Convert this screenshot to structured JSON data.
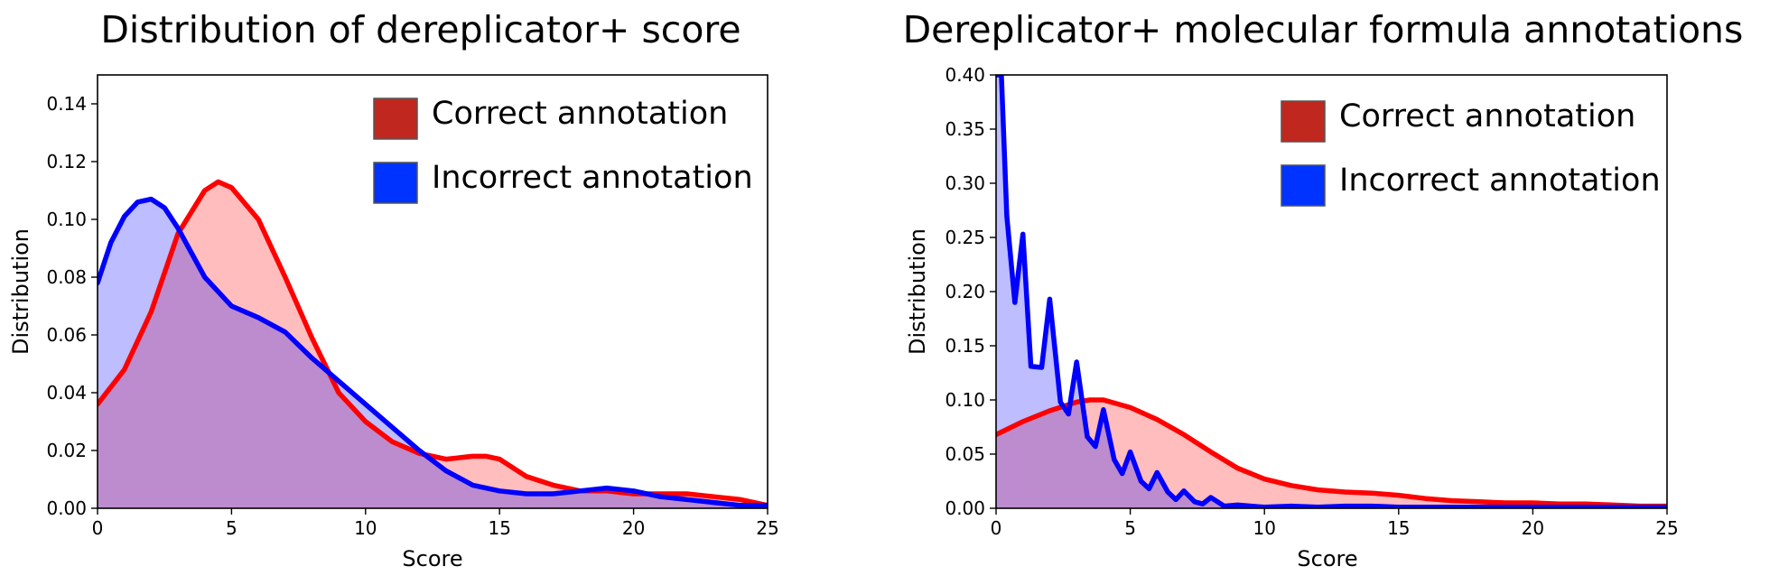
{
  "chart_data": [
    {
      "type": "area",
      "title": "Distribution of dereplicator+ score",
      "xlabel": "Score",
      "ylabel": "Distribution",
      "xlim": [
        0,
        25
      ],
      "ylim": [
        0,
        0.15
      ],
      "xticks": [
        "0",
        "5",
        "10",
        "15",
        "20",
        "25"
      ],
      "yticks": [
        "0.00",
        "0.02",
        "0.04",
        "0.06",
        "0.08",
        "0.10",
        "0.12",
        "0.14"
      ],
      "legend_position": "top-right",
      "series": [
        {
          "name": "Correct annotation",
          "line_color": "#ff0000",
          "fill_color": "#ffb3b3",
          "legend_color": "#c0281f",
          "x": [
            0,
            1,
            2,
            3,
            4,
            4.5,
            5,
            6,
            7,
            8,
            9,
            10,
            11,
            12,
            13,
            14,
            14.5,
            15,
            16,
            17,
            18,
            19,
            20,
            21,
            22,
            23,
            24,
            25
          ],
          "y": [
            0.036,
            0.048,
            0.068,
            0.095,
            0.11,
            0.113,
            0.111,
            0.1,
            0.08,
            0.059,
            0.04,
            0.03,
            0.023,
            0.019,
            0.017,
            0.018,
            0.018,
            0.017,
            0.011,
            0.008,
            0.006,
            0.006,
            0.005,
            0.005,
            0.005,
            0.004,
            0.003,
            0.001
          ]
        },
        {
          "name": "Incorrect annotation",
          "line_color": "#0000ff",
          "fill_color": "#b3b3ff",
          "legend_color": "#0033ff",
          "x": [
            0,
            0.5,
            1,
            1.5,
            2,
            2.5,
            3,
            4,
            5,
            6,
            7,
            8,
            9,
            10,
            11,
            12,
            13,
            14,
            15,
            16,
            17,
            18,
            19,
            20,
            21,
            22,
            23,
            24,
            25
          ],
          "y": [
            0.078,
            0.092,
            0.101,
            0.106,
            0.107,
            0.104,
            0.097,
            0.08,
            0.07,
            0.066,
            0.061,
            0.052,
            0.044,
            0.036,
            0.028,
            0.02,
            0.013,
            0.008,
            0.006,
            0.005,
            0.005,
            0.006,
            0.007,
            0.006,
            0.004,
            0.003,
            0.002,
            0.001,
            0.001
          ]
        }
      ]
    },
    {
      "type": "area",
      "title": "Dereplicator+ molecular formula annotations",
      "xlabel": "Score",
      "ylabel": "Distribution",
      "xlim": [
        0,
        25
      ],
      "ylim": [
        0,
        0.4
      ],
      "xticks": [
        "0",
        "5",
        "10",
        "15",
        "20",
        "25"
      ],
      "yticks": [
        "0.00",
        "0.05",
        "0.10",
        "0.15",
        "0.20",
        "0.25",
        "0.30",
        "0.35",
        "0.40"
      ],
      "legend_position": "top-right",
      "series": [
        {
          "name": "Correct annotation",
          "line_color": "#ff0000",
          "fill_color": "#ffb3b3",
          "legend_color": "#c0281f",
          "x": [
            0,
            1,
            2,
            3,
            3.5,
            4,
            5,
            6,
            7,
            8,
            9,
            10,
            11,
            12,
            13,
            14,
            15,
            16,
            17,
            18,
            19,
            20,
            21,
            22,
            23,
            24,
            25
          ],
          "y": [
            0.068,
            0.08,
            0.09,
            0.098,
            0.1,
            0.1,
            0.093,
            0.082,
            0.068,
            0.052,
            0.037,
            0.027,
            0.021,
            0.017,
            0.015,
            0.014,
            0.012,
            0.009,
            0.007,
            0.006,
            0.005,
            0.005,
            0.004,
            0.004,
            0.003,
            0.002,
            0.002
          ]
        },
        {
          "name": "Incorrect annotation",
          "line_color": "#0000ff",
          "fill_color": "#b3b3ff",
          "legend_color": "#0033ff",
          "x": [
            0,
            0.2,
            0.4,
            0.7,
            1.0,
            1.3,
            1.7,
            2.0,
            2.4,
            2.7,
            3.0,
            3.4,
            3.7,
            4.0,
            4.4,
            4.7,
            5.0,
            5.4,
            5.7,
            6.0,
            6.4,
            6.7,
            7.0,
            7.4,
            7.7,
            8.0,
            8.5,
            9.0,
            10,
            11,
            12,
            13,
            14,
            15,
            16,
            18,
            20,
            22,
            25
          ],
          "y": [
            0.4,
            0.4,
            0.27,
            0.19,
            0.253,
            0.131,
            0.13,
            0.193,
            0.098,
            0.087,
            0.135,
            0.066,
            0.057,
            0.091,
            0.045,
            0.032,
            0.052,
            0.025,
            0.018,
            0.033,
            0.015,
            0.008,
            0.016,
            0.006,
            0.004,
            0.01,
            0.002,
            0.003,
            0.001,
            0.002,
            0.001,
            0.002,
            0.002,
            0.001,
            0.001,
            0.001,
            0.001,
            0.001,
            0.001
          ]
        }
      ]
    }
  ]
}
